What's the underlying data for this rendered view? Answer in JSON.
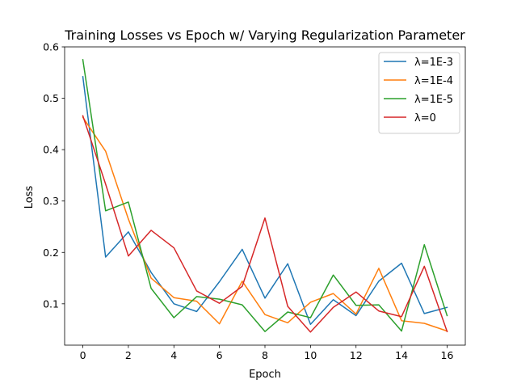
{
  "chart_data": {
    "type": "line",
    "title": "Training Losses vs Epoch w/ Varying Regularization Parameter",
    "xlabel": "Epoch",
    "ylabel": "Loss",
    "xlim": [
      -0.8,
      16.8
    ],
    "ylim": [
      0.0195,
      0.6
    ],
    "xticks": [
      0,
      2,
      4,
      6,
      8,
      10,
      12,
      14,
      16
    ],
    "yticks": [
      0.1,
      0.2,
      0.3,
      0.4,
      0.5,
      0.6
    ],
    "ytick_labels": [
      "0.1",
      "0.2",
      "0.3",
      "0.4",
      "0.5",
      "0.6"
    ],
    "legend_position": "top-right",
    "grid": false,
    "x": [
      0,
      1,
      2,
      3,
      4,
      5,
      6,
      7,
      8,
      9,
      10,
      11,
      12,
      13,
      14,
      15,
      16
    ],
    "series": [
      {
        "name": "λ=1E-3",
        "color": "#1f77b4",
        "values": [
          0.542,
          0.191,
          0.24,
          0.161,
          0.1,
          0.085,
          0.143,
          0.206,
          0.111,
          0.178,
          0.06,
          0.108,
          0.077,
          0.144,
          0.179,
          0.081,
          0.093
        ]
      },
      {
        "name": "λ=1E-4",
        "color": "#ff7f0e",
        "values": [
          0.463,
          0.397,
          0.265,
          0.15,
          0.112,
          0.105,
          0.061,
          0.144,
          0.079,
          0.063,
          0.103,
          0.12,
          0.08,
          0.169,
          0.067,
          0.062,
          0.047
        ]
      },
      {
        "name": "λ=1E-5",
        "color": "#2ca02c",
        "values": [
          0.575,
          0.281,
          0.298,
          0.13,
          0.073,
          0.114,
          0.109,
          0.098,
          0.046,
          0.084,
          0.073,
          0.156,
          0.097,
          0.098,
          0.047,
          0.215,
          0.077
        ]
      },
      {
        "name": "λ=0",
        "color": "#d62728",
        "values": [
          0.466,
          0.333,
          0.193,
          0.243,
          0.209,
          0.125,
          0.101,
          0.134,
          0.267,
          0.095,
          0.045,
          0.093,
          0.123,
          0.086,
          0.075,
          0.173,
          0.046
        ]
      }
    ]
  }
}
